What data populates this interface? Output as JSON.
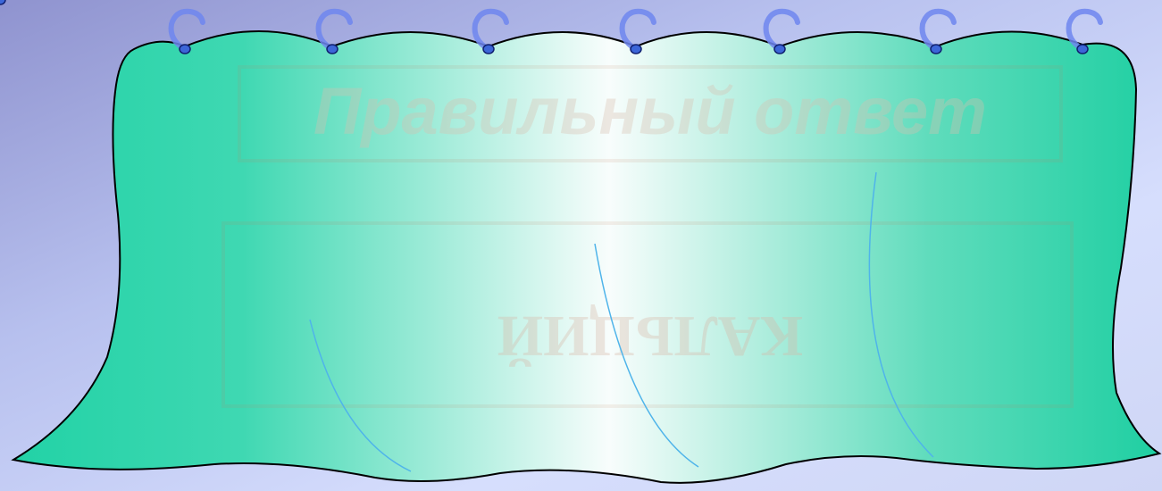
{
  "slide": {
    "title": "Правильный ответ",
    "answer": "КАЛЬЦИЙ"
  }
}
